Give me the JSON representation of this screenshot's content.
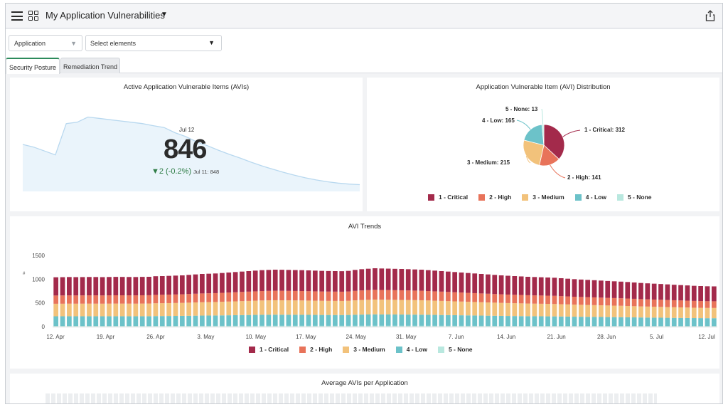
{
  "header": {
    "title": "My Application Vulnerabilities"
  },
  "filters": {
    "application": "Application",
    "elements": "Select elements"
  },
  "tabs": [
    {
      "label": "Security Posture",
      "active": true
    },
    {
      "label": "Remediation Trend",
      "active": false
    }
  ],
  "colors": {
    "critical": "#a32a4b",
    "high": "#e8735a",
    "medium": "#f2c27b",
    "low": "#6cc2c9",
    "none": "#b9e8df",
    "positive": "#2f7d46",
    "tab_accent": "#2c8a5b"
  },
  "icons": [
    "hamburger-icon",
    "grid-icon",
    "chevron-down-icon",
    "share-icon",
    "funnel-icon"
  ],
  "avi_card": {
    "title": "Active Application Vulnerable Items (AVIs)",
    "date": "Jul 12",
    "value": "846",
    "delta": "▼2 (-0.2%)",
    "previous": "Jul 11: 848"
  },
  "distribution_card": {
    "title": "Application Vulnerable Item (AVI) Distribution",
    "labels": {
      "critical": "1 - Critical: 312",
      "high": "2 - High: 141",
      "medium": "3 - Medium: 215",
      "low": "4 - Low: 165",
      "none": "5 - None: 13"
    }
  },
  "legend": [
    "1 - Critical",
    "2 - High",
    "3 - Medium",
    "4 - Low",
    "5 - None"
  ],
  "trends_card": {
    "title": "AVI Trends",
    "y_label": "#",
    "y_ticks": [
      "1500",
      "1000",
      "500",
      "0"
    ],
    "x_ticks": [
      "12. Apr",
      "19. Apr",
      "26. Apr",
      "3. May",
      "10. May",
      "17. May",
      "24. May",
      "31. May",
      "7. Jun",
      "14. Jun",
      "21. Jun",
      "28. Jun",
      "5. Jul",
      "12. Jul"
    ]
  },
  "avg_card": {
    "title": "Average AVIs per Application"
  },
  "chart_data": [
    {
      "type": "area",
      "title": "Active Application Vulnerable Items (AVIs)",
      "series": [
        {
          "values": [
            1000,
            990,
            975,
            960,
            1080,
            1085,
            1105,
            1100,
            1095,
            1090,
            1085,
            1080,
            1072,
            1065,
            1045,
            1030,
            1010,
            995,
            978,
            962,
            948,
            932,
            918,
            905,
            893,
            882,
            872,
            864,
            857,
            852,
            848,
            846
          ]
        }
      ]
    },
    {
      "type": "pie",
      "title": "Application Vulnerable Item (AVI) Distribution",
      "categories": [
        "1 - Critical",
        "2 - High",
        "3 - Medium",
        "4 - Low",
        "5 - None"
      ],
      "values": [
        312,
        141,
        215,
        165,
        13
      ]
    },
    {
      "type": "bar",
      "stacked": true,
      "title": "AVI Trends",
      "ylabel": "#",
      "ylim": [
        0,
        1500
      ],
      "x_ticks": [
        "12. Apr",
        "19. Apr",
        "26. Apr",
        "3. May",
        "10. May",
        "17. May",
        "24. May",
        "31. May",
        "7. Jun",
        "14. Jun",
        "21. Jun",
        "28. Jun",
        "5. Jul",
        "12. Jul"
      ],
      "totals": [
        1040,
        1042,
        1045,
        1043,
        1044,
        1046,
        1045,
        1043,
        1046,
        1048,
        1047,
        1046,
        1045,
        1048,
        1050,
        1062,
        1065,
        1070,
        1075,
        1080,
        1090,
        1100,
        1110,
        1115,
        1120,
        1130,
        1140,
        1150,
        1160,
        1170,
        1180,
        1190,
        1195,
        1200,
        1198,
        1195,
        1192,
        1190,
        1185,
        1180,
        1175,
        1172,
        1170,
        1168,
        1175,
        1195,
        1210,
        1220,
        1230,
        1225,
        1222,
        1218,
        1215,
        1210,
        1205,
        1200,
        1190,
        1180,
        1170,
        1160,
        1150,
        1140,
        1130,
        1120,
        1110,
        1100,
        1090,
        1080,
        1072,
        1065,
        1058,
        1050,
        1045,
        1040,
        1035,
        1030,
        1020,
        1010,
        1000,
        992,
        985,
        978,
        970,
        962,
        955,
        948,
        940,
        930,
        920,
        912,
        905,
        898,
        890,
        882,
        875,
        868,
        860,
        855,
        850,
        848
      ],
      "shares": {
        "1 - Critical": 0.37,
        "2 - High": 0.167,
        "3 - Medium": 0.254,
        "4 - Low": 0.195,
        "5 - None": 0.014
      }
    }
  ]
}
